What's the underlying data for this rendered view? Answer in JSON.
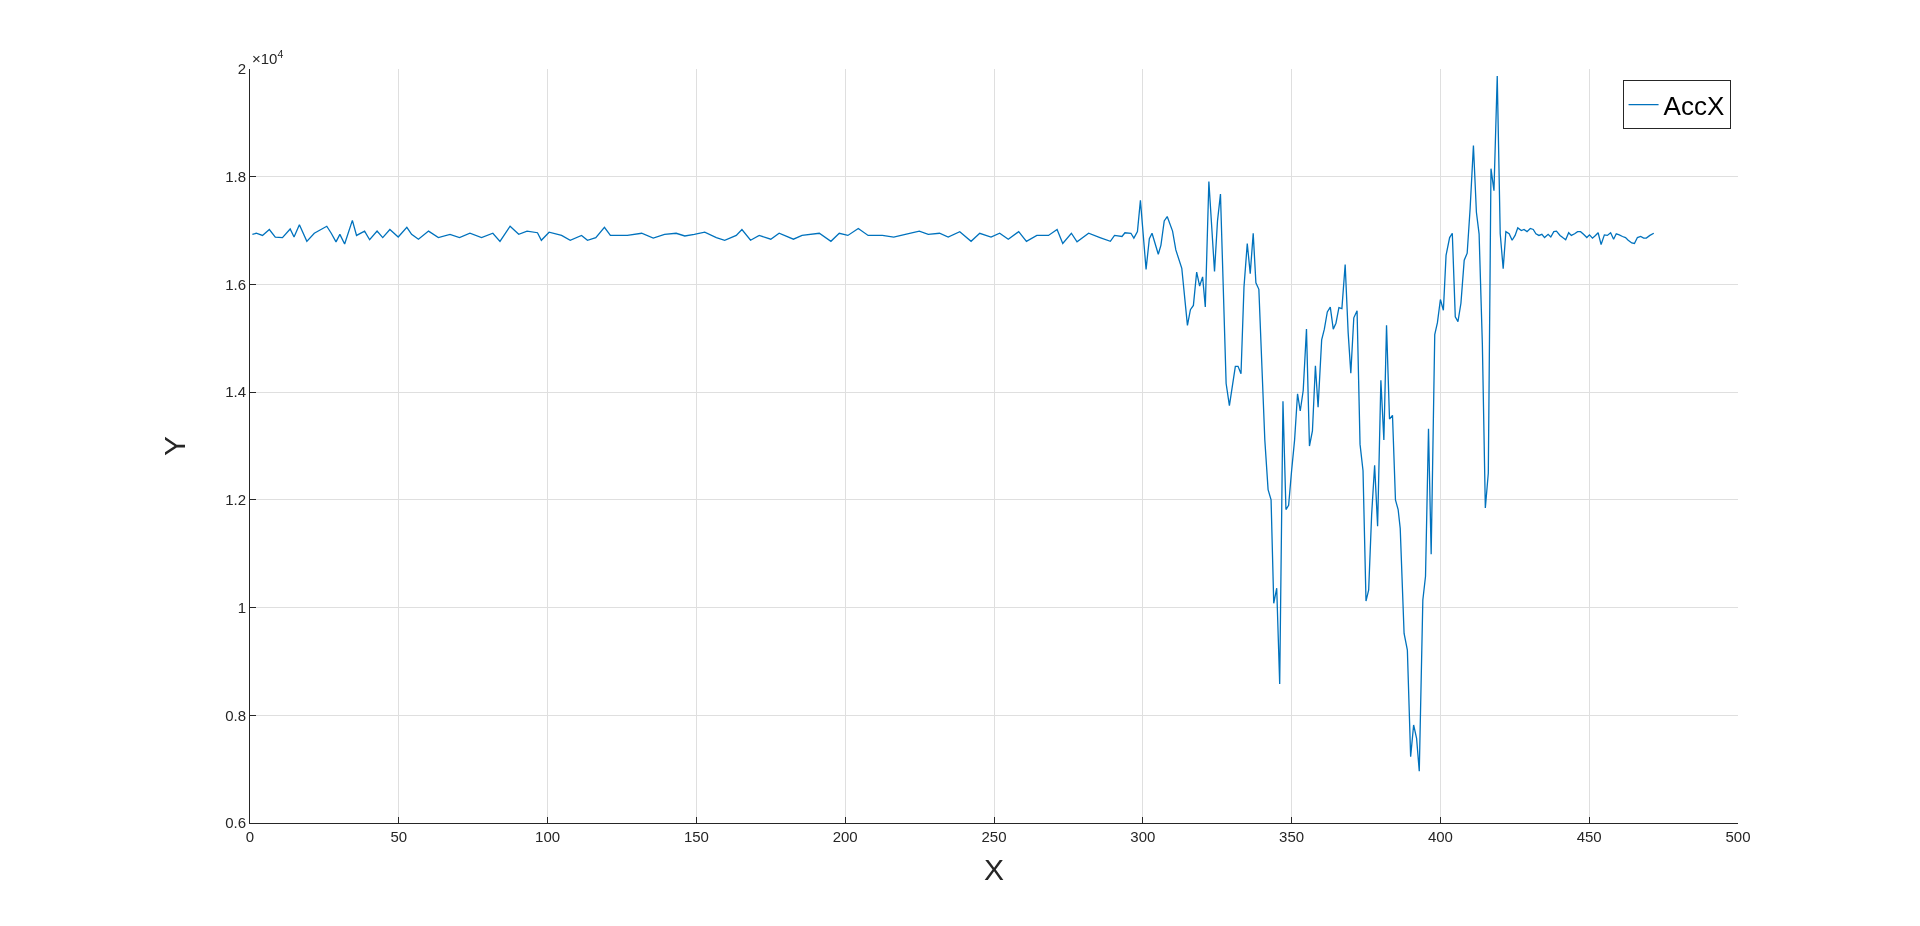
{
  "chart_data": {
    "type": "line",
    "xlabel": "X",
    "ylabel": "Y",
    "legend": "top right",
    "grid": true,
    "marker": "none",
    "line_style": "solid",
    "xlim": [
      0,
      500
    ],
    "xticks": [
      0,
      50,
      100,
      150,
      200,
      250,
      300,
      350,
      400,
      450,
      500
    ],
    "ylim": [
      0.6,
      2
    ],
    "yticks": [
      0.6,
      0.8,
      1,
      1.2,
      1.4,
      1.6,
      1.8,
      2
    ],
    "annotations": [
      "×10$^{4}$"
    ],
    "series": [
      {
        "name": "AccX",
        "color": "#0072bd",
        "x": [
          0.8,
          2.1,
          4.2,
          6.5,
          8.5,
          10.9,
          13.5,
          14.8,
          16.6,
          19.1,
          21.6,
          25.8,
          27.3,
          28.9,
          30.2,
          31.8,
          34.4,
          35.8,
          38.5,
          40.2,
          42.7,
          44.6,
          47,
          49.8,
          52.7,
          54.3,
          56.6,
          60,
          63.3,
          67.2,
          70.4,
          73.9,
          77.8,
          81.6,
          84,
          87.4,
          90.3,
          93.1,
          96.6,
          97.9,
          100.5,
          104.7,
          107.6,
          111.4,
          113.4,
          116.2,
          119.1,
          121.1,
          124,
          126.8,
          131.6,
          135.5,
          139.3,
          143.2,
          146.1,
          149.3,
          152.8,
          156.7,
          159.5,
          163.4,
          165.3,
          168.2,
          171.1,
          175,
          177.8,
          182.6,
          185.5,
          191.3,
          195.2,
          198,
          200.9,
          204.4,
          207.7,
          212.5,
          216.3,
          220.2,
          224.9,
          227.9,
          231.7,
          234.6,
          238.5,
          242.3,
          245.2,
          249,
          251.9,
          254.8,
          258.3,
          260.9,
          264.4,
          268.3,
          271.2,
          273.1,
          276,
          277.9,
          281.8,
          285.6,
          289.1,
          290.5,
          293,
          294,
          296,
          297,
          298.2,
          299.2,
          301.1,
          302.2,
          303.1,
          305.2,
          306.1,
          307.2,
          308.2,
          310,
          311.1,
          313.1,
          315,
          316,
          317,
          318.1,
          319.1,
          320.1,
          321,
          322.2,
          324.1,
          325.1,
          326.1,
          328,
          329.1,
          331.1,
          332,
          333,
          334,
          335.1,
          336.1,
          337.1,
          338,
          339,
          341,
          342.1,
          343.1,
          344,
          345,
          346,
          347.1,
          348.1,
          349,
          350,
          351,
          352,
          352.9,
          353.9,
          355,
          356,
          357,
          358,
          358.9,
          360.1,
          361,
          362,
          363,
          364,
          364.9,
          365.9,
          366.9,
          368,
          369,
          369.9,
          370.9,
          372,
          373,
          374,
          375,
          375.9,
          376.9,
          377.9,
          378.9,
          380,
          381,
          381.9,
          382.9,
          383.9,
          384.9,
          385.8,
          386.5,
          387.8,
          388.9,
          390,
          391,
          392,
          392.9,
          394.1,
          395,
          396,
          396.9,
          398.1,
          399,
          400,
          401,
          401.9,
          403.1,
          404,
          405,
          405.9,
          406.9,
          408,
          409,
          410,
          411.1,
          412.1,
          413,
          414.1,
          415.1,
          416.1,
          417,
          418,
          419.1,
          420.1,
          421.1,
          422,
          423.1,
          424.1,
          425.1,
          426,
          427.2,
          428.1,
          429.1,
          430.2,
          431.2,
          432.1,
          433.1,
          434.1,
          435,
          436.2,
          437.1,
          438.1,
          439,
          440.2,
          441.1,
          442.1,
          443.1,
          444,
          445.1,
          446.1,
          447.1,
          448.1,
          449.2,
          450.1,
          451.1,
          452.1,
          453,
          454,
          455.1,
          456.1,
          457.2,
          458.2,
          459.1,
          460.1,
          461.2,
          462.2,
          463.1,
          464.3,
          465.2,
          466.2,
          467.3,
          468.3,
          469.2,
          470.4,
          471.7
        ],
        "values": [
          1.693,
          1.695,
          1.691,
          1.702,
          1.688,
          1.687,
          1.703,
          1.688,
          1.711,
          1.68,
          1.695,
          1.708,
          1.695,
          1.679,
          1.693,
          1.675,
          1.719,
          1.691,
          1.699,
          1.683,
          1.699,
          1.687,
          1.702,
          1.688,
          1.706,
          1.693,
          1.684,
          1.699,
          1.687,
          1.693,
          1.687,
          1.695,
          1.687,
          1.695,
          1.68,
          1.708,
          1.693,
          1.699,
          1.696,
          1.682,
          1.697,
          1.691,
          1.682,
          1.691,
          1.682,
          1.687,
          1.706,
          1.691,
          1.691,
          1.691,
          1.695,
          1.686,
          1.693,
          1.695,
          1.69,
          1.693,
          1.697,
          1.687,
          1.682,
          1.691,
          1.702,
          1.682,
          1.691,
          1.684,
          1.695,
          1.684,
          1.691,
          1.695,
          1.68,
          1.695,
          1.691,
          1.704,
          1.691,
          1.691,
          1.688,
          1.693,
          1.699,
          1.693,
          1.695,
          1.688,
          1.698,
          1.68,
          1.695,
          1.688,
          1.695,
          1.684,
          1.698,
          1.68,
          1.691,
          1.691,
          1.702,
          1.676,
          1.695,
          1.679,
          1.695,
          1.687,
          1.68,
          1.691,
          1.689,
          1.696,
          1.695,
          1.686,
          1.698,
          1.756,
          1.628,
          1.685,
          1.695,
          1.656,
          1.673,
          1.718,
          1.726,
          1.699,
          1.664,
          1.63,
          1.524,
          1.553,
          1.561,
          1.623,
          1.597,
          1.614,
          1.558,
          1.791,
          1.624,
          1.718,
          1.768,
          1.416,
          1.375,
          1.448,
          1.448,
          1.434,
          1.595,
          1.676,
          1.62,
          1.695,
          1.603,
          1.591,
          1.311,
          1.219,
          1.2,
          1.008,
          1.036,
          0.858,
          1.383,
          1.182,
          1.19,
          1.254,
          1.311,
          1.397,
          1.365,
          1.403,
          1.517,
          1.3,
          1.328,
          1.449,
          1.372,
          1.497,
          1.517,
          1.549,
          1.558,
          1.517,
          1.528,
          1.557,
          1.555,
          1.637,
          1.511,
          1.435,
          1.538,
          1.551,
          1.303,
          1.254,
          1.012,
          1.033,
          1.173,
          1.264,
          1.151,
          1.422,
          1.311,
          1.524,
          1.35,
          1.357,
          1.2,
          1.182,
          1.147,
          0.952,
          0.921,
          0.723,
          0.782,
          0.757,
          0.696,
          1.014,
          1.058,
          1.332,
          1.099,
          1.507,
          1.529,
          1.572,
          1.552,
          1.654,
          1.687,
          1.695,
          1.54,
          1.531,
          1.565,
          1.645,
          1.658,
          1.742,
          1.858,
          1.734,
          1.694,
          1.489,
          1.185,
          1.25,
          1.815,
          1.774,
          1.987,
          1.694,
          1.629,
          1.698,
          1.694,
          1.682,
          1.691,
          1.705,
          1.7,
          1.702,
          1.698,
          1.704,
          1.702,
          1.694,
          1.691,
          1.693,
          1.687,
          1.693,
          1.688,
          1.698,
          1.699,
          1.691,
          1.687,
          1.683,
          1.696,
          1.691,
          1.694,
          1.698,
          1.698,
          1.693,
          1.687,
          1.692,
          1.686,
          1.691,
          1.696,
          1.674,
          1.692,
          1.691,
          1.696,
          1.684,
          1.694,
          1.692,
          1.689,
          1.687,
          1.682,
          1.677,
          1.676,
          1.687,
          1.689,
          1.686,
          1.686,
          1.691,
          1.695
        ]
      }
    ]
  }
}
